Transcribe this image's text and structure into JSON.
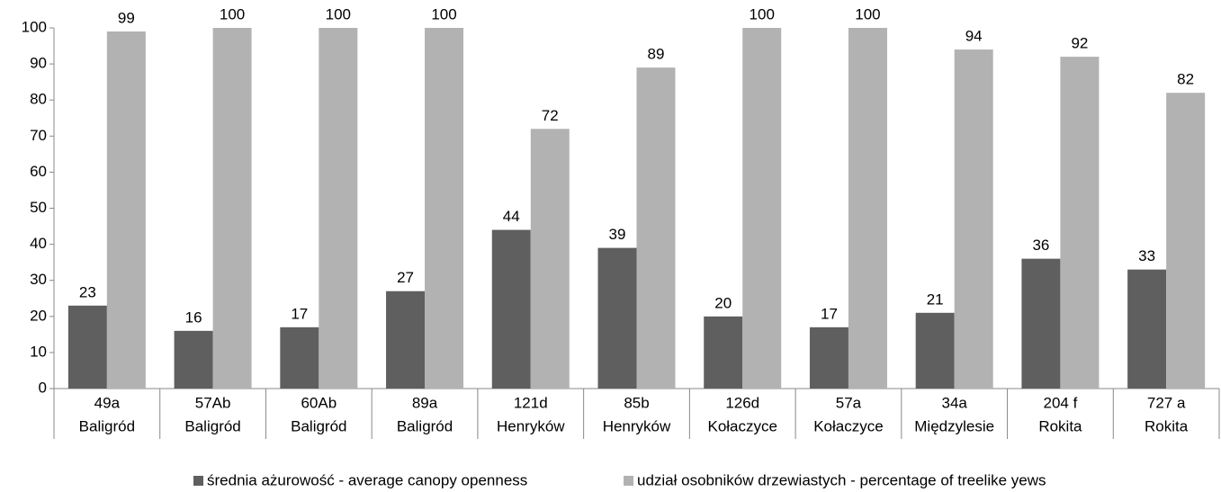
{
  "chart_data": {
    "type": "bar",
    "categories": [
      "49a",
      "57Ab",
      "60Ab",
      "89a",
      "121d",
      "85b",
      "126d",
      "57a",
      "34a",
      "204 f",
      "727 a"
    ],
    "subcategories": [
      "Baligród",
      "Baligród",
      "Baligród",
      "Baligród",
      "Henryków",
      "Henryków",
      "Kołaczyce",
      "Kołaczyce",
      "Międzylesie",
      "Rokita",
      "Rokita"
    ],
    "series": [
      {
        "name": "średnia ażurowość - average canopy openness",
        "color": "#5f5f5f",
        "values": [
          23,
          16,
          17,
          27,
          44,
          39,
          20,
          17,
          21,
          36,
          33
        ]
      },
      {
        "name": "udział osobników drzewiastych - percentage of treelike yews",
        "color": "#b2b2b2",
        "values": [
          99,
          100,
          100,
          100,
          72,
          89,
          100,
          100,
          94,
          92,
          82
        ]
      }
    ],
    "ylim": [
      0,
      100
    ],
    "yticks": [
      0,
      10,
      20,
      30,
      40,
      50,
      60,
      70,
      80,
      90,
      100
    ],
    "grid": false,
    "legend": "bottom"
  }
}
